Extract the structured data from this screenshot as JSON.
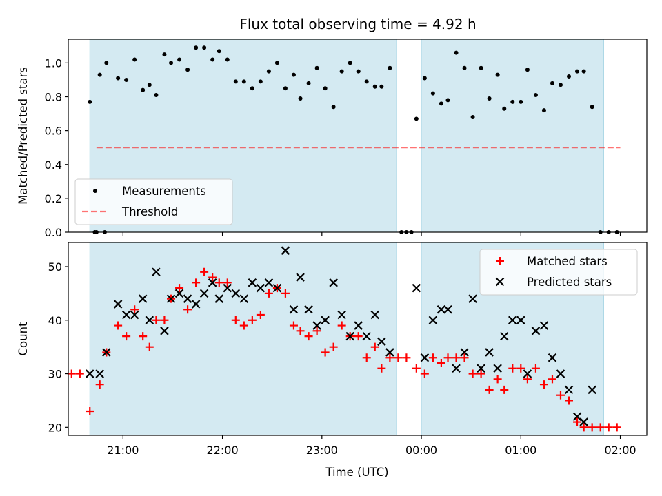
{
  "chart_data": {
    "title": "Flux total observing time = 4.92 h",
    "xlabel": "Time (UTC)",
    "x_units": "UTC time (HH:MM, times after midnight written as 24:00+)",
    "xlim": [
      "20:27",
      "26:16"
    ],
    "xticks": [
      {
        "t": "21:00",
        "label": "21:00"
      },
      {
        "t": "22:00",
        "label": "22:00"
      },
      {
        "t": "23:00",
        "label": "23:00"
      },
      {
        "t": "24:00",
        "label": "00:00"
      },
      {
        "t": "25:00",
        "label": "01:00"
      },
      {
        "t": "26:00",
        "label": "02:00"
      }
    ],
    "observing_windows": [
      [
        "20:40",
        "23:45"
      ],
      [
        "24:00",
        "25:50"
      ]
    ],
    "colors": {
      "window": "#add8e6",
      "measurement": "#000000",
      "threshold": "#ff0000",
      "matched": "#ff0000",
      "predicted": "#000000"
    },
    "panels": [
      {
        "type": "scatter",
        "ylabel": "Matched/Predicted stars",
        "ylim": [
          0,
          1.14
        ],
        "yticks": [
          0.0,
          0.2,
          0.4,
          0.6,
          0.8,
          1.0
        ],
        "ytick_labels": [
          "0.0",
          "0.2",
          "0.4",
          "0.6",
          "0.8",
          "1.0"
        ],
        "legend_position": "lower-left",
        "legend": [
          "Measurements",
          "Threshold"
        ],
        "threshold": {
          "value": 0.5,
          "x_range": [
            "20:44",
            "26:00"
          ]
        },
        "series": [
          {
            "name": "Measurements",
            "marker": "dot",
            "points": [
              [
                "20:44",
                0.0
              ],
              [
                "20:49",
                0.0
              ],
              [
                "20:43",
                0.0
              ],
              [
                "20:40",
                0.77
              ],
              [
                "20:46",
                0.93
              ],
              [
                "20:50",
                1.0
              ],
              [
                "20:57",
                0.91
              ],
              [
                "21:02",
                0.9
              ],
              [
                "21:07",
                1.02
              ],
              [
                "21:12",
                0.84
              ],
              [
                "21:16",
                0.87
              ],
              [
                "21:20",
                0.81
              ],
              [
                "21:25",
                1.05
              ],
              [
                "21:29",
                1.0
              ],
              [
                "21:34",
                1.02
              ],
              [
                "21:39",
                0.96
              ],
              [
                "21:44",
                1.09
              ],
              [
                "21:49",
                1.09
              ],
              [
                "21:54",
                1.02
              ],
              [
                "21:58",
                1.07
              ],
              [
                "22:03",
                1.02
              ],
              [
                "22:08",
                0.89
              ],
              [
                "22:13",
                0.89
              ],
              [
                "22:18",
                0.85
              ],
              [
                "22:23",
                0.89
              ],
              [
                "22:28",
                0.95
              ],
              [
                "22:33",
                1.0
              ],
              [
                "22:38",
                0.85
              ],
              [
                "22:43",
                0.93
              ],
              [
                "22:47",
                0.79
              ],
              [
                "22:52",
                0.88
              ],
              [
                "22:57",
                0.97
              ],
              [
                "23:02",
                0.85
              ],
              [
                "23:07",
                0.74
              ],
              [
                "23:12",
                0.95
              ],
              [
                "23:17",
                1.0
              ],
              [
                "23:22",
                0.95
              ],
              [
                "23:27",
                0.89
              ],
              [
                "23:32",
                0.86
              ],
              [
                "23:36",
                0.86
              ],
              [
                "23:41",
                0.97
              ],
              [
                "23:48",
                0.0
              ],
              [
                "23:51",
                0.0
              ],
              [
                "23:54",
                0.0
              ],
              [
                "23:57",
                0.67
              ],
              [
                "24:02",
                0.91
              ],
              [
                "24:07",
                0.82
              ],
              [
                "24:12",
                0.76
              ],
              [
                "24:16",
                0.78
              ],
              [
                "24:21",
                1.06
              ],
              [
                "24:26",
                0.97
              ],
              [
                "24:31",
                0.68
              ],
              [
                "24:36",
                0.97
              ],
              [
                "24:41",
                0.79
              ],
              [
                "24:46",
                0.93
              ],
              [
                "24:50",
                0.73
              ],
              [
                "24:55",
                0.77
              ],
              [
                "25:00",
                0.77
              ],
              [
                "25:04",
                0.96
              ],
              [
                "25:09",
                0.81
              ],
              [
                "25:14",
                0.72
              ],
              [
                "25:19",
                0.88
              ],
              [
                "25:24",
                0.87
              ],
              [
                "25:29",
                0.92
              ],
              [
                "25:34",
                0.95
              ],
              [
                "25:38",
                0.95
              ],
              [
                "25:43",
                0.74
              ],
              [
                "25:48",
                0.0
              ],
              [
                "25:53",
                0.0
              ],
              [
                "25:58",
                0.0
              ]
            ]
          }
        ]
      },
      {
        "type": "scatter",
        "ylabel": "Count",
        "ylim": [
          18.5,
          54.5
        ],
        "yticks": [
          20,
          30,
          40,
          50
        ],
        "ytick_labels": [
          "20",
          "30",
          "40",
          "50"
        ],
        "legend_position": "upper-right",
        "legend": [
          "Matched stars",
          "Predicted stars"
        ],
        "series": [
          {
            "name": "Matched stars",
            "marker": "plus",
            "points": [
              [
                "20:29",
                30
              ],
              [
                "20:34",
                30
              ],
              [
                "20:40",
                23
              ],
              [
                "20:46",
                28
              ],
              [
                "20:50",
                34
              ],
              [
                "20:57",
                39
              ],
              [
                "21:02",
                37
              ],
              [
                "21:07",
                42
              ],
              [
                "21:12",
                37
              ],
              [
                "21:16",
                35
              ],
              [
                "21:20",
                40
              ],
              [
                "21:25",
                40
              ],
              [
                "21:29",
                44
              ],
              [
                "21:34",
                46
              ],
              [
                "21:39",
                42
              ],
              [
                "21:44",
                47
              ],
              [
                "21:49",
                49
              ],
              [
                "21:54",
                48
              ],
              [
                "21:58",
                47
              ],
              [
                "22:03",
                47
              ],
              [
                "22:08",
                40
              ],
              [
                "22:13",
                39
              ],
              [
                "22:18",
                40
              ],
              [
                "22:23",
                41
              ],
              [
                "22:28",
                45
              ],
              [
                "22:33",
                46
              ],
              [
                "22:38",
                45
              ],
              [
                "22:43",
                39
              ],
              [
                "22:47",
                38
              ],
              [
                "22:52",
                37
              ],
              [
                "22:57",
                38
              ],
              [
                "23:02",
                34
              ],
              [
                "23:07",
                35
              ],
              [
                "23:12",
                39
              ],
              [
                "23:17",
                37
              ],
              [
                "23:22",
                37
              ],
              [
                "23:27",
                33
              ],
              [
                "23:32",
                35
              ],
              [
                "23:36",
                31
              ],
              [
                "23:41",
                33
              ],
              [
                "23:46",
                33
              ],
              [
                "23:51",
                33
              ],
              [
                "23:57",
                31
              ],
              [
                "24:02",
                30
              ],
              [
                "24:07",
                33
              ],
              [
                "24:12",
                32
              ],
              [
                "24:16",
                33
              ],
              [
                "24:21",
                33
              ],
              [
                "24:26",
                33
              ],
              [
                "24:31",
                30
              ],
              [
                "24:36",
                30
              ],
              [
                "24:41",
                27
              ],
              [
                "24:46",
                29
              ],
              [
                "24:50",
                27
              ],
              [
                "24:55",
                31
              ],
              [
                "25:00",
                31
              ],
              [
                "25:04",
                29
              ],
              [
                "25:09",
                31
              ],
              [
                "25:14",
                28
              ],
              [
                "25:19",
                29
              ],
              [
                "25:24",
                26
              ],
              [
                "25:29",
                25
              ],
              [
                "25:34",
                21
              ],
              [
                "25:38",
                20
              ],
              [
                "25:43",
                20
              ],
              [
                "25:48",
                20
              ],
              [
                "25:53",
                20
              ],
              [
                "25:58",
                20
              ]
            ]
          },
          {
            "name": "Predicted stars",
            "marker": "x",
            "points": [
              [
                "20:40",
                30
              ],
              [
                "20:46",
                30
              ],
              [
                "20:50",
                34
              ],
              [
                "20:57",
                43
              ],
              [
                "21:02",
                41
              ],
              [
                "21:07",
                41
              ],
              [
                "21:12",
                44
              ],
              [
                "21:16",
                40
              ],
              [
                "21:20",
                49
              ],
              [
                "21:25",
                38
              ],
              [
                "21:29",
                44
              ],
              [
                "21:34",
                45
              ],
              [
                "21:39",
                44
              ],
              [
                "21:44",
                43
              ],
              [
                "21:49",
                45
              ],
              [
                "21:54",
                47
              ],
              [
                "21:58",
                44
              ],
              [
                "22:03",
                46
              ],
              [
                "22:08",
                45
              ],
              [
                "22:13",
                44
              ],
              [
                "22:18",
                47
              ],
              [
                "22:23",
                46
              ],
              [
                "22:28",
                47
              ],
              [
                "22:33",
                46
              ],
              [
                "22:38",
                53
              ],
              [
                "22:43",
                42
              ],
              [
                "22:47",
                48
              ],
              [
                "22:52",
                42
              ],
              [
                "22:57",
                39
              ],
              [
                "23:02",
                40
              ],
              [
                "23:07",
                47
              ],
              [
                "23:12",
                41
              ],
              [
                "23:17",
                37
              ],
              [
                "23:22",
                39
              ],
              [
                "23:27",
                37
              ],
              [
                "23:32",
                41
              ],
              [
                "23:36",
                36
              ],
              [
                "23:41",
                34
              ],
              [
                "23:57",
                46
              ],
              [
                "24:02",
                33
              ],
              [
                "24:07",
                40
              ],
              [
                "24:12",
                42
              ],
              [
                "24:16",
                42
              ],
              [
                "24:21",
                31
              ],
              [
                "24:26",
                34
              ],
              [
                "24:31",
                44
              ],
              [
                "24:36",
                31
              ],
              [
                "24:41",
                34
              ],
              [
                "24:46",
                31
              ],
              [
                "24:50",
                37
              ],
              [
                "24:55",
                40
              ],
              [
                "25:00",
                40
              ],
              [
                "25:04",
                30
              ],
              [
                "25:09",
                38
              ],
              [
                "25:14",
                39
              ],
              [
                "25:19",
                33
              ],
              [
                "25:24",
                30
              ],
              [
                "25:29",
                27
              ],
              [
                "25:34",
                22
              ],
              [
                "25:38",
                21
              ],
              [
                "25:43",
                27
              ]
            ]
          }
        ]
      }
    ]
  }
}
